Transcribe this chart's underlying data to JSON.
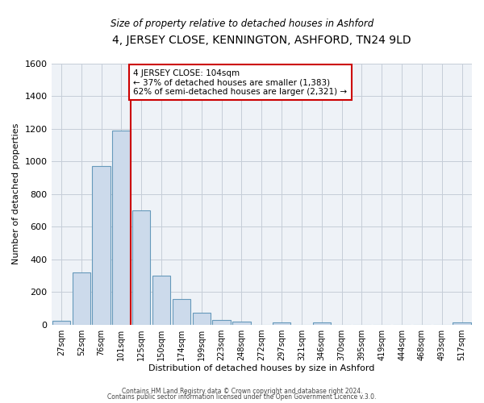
{
  "title": "4, JERSEY CLOSE, KENNINGTON, ASHFORD, TN24 9LD",
  "subtitle": "Size of property relative to detached houses in Ashford",
  "xlabel": "Distribution of detached houses by size in Ashford",
  "ylabel": "Number of detached properties",
  "bar_color": "#ccdaeb",
  "bar_edge_color": "#6699bb",
  "categories": [
    "27sqm",
    "52sqm",
    "76sqm",
    "101sqm",
    "125sqm",
    "150sqm",
    "174sqm",
    "199sqm",
    "223sqm",
    "248sqm",
    "272sqm",
    "297sqm",
    "321sqm",
    "346sqm",
    "370sqm",
    "395sqm",
    "419sqm",
    "444sqm",
    "468sqm",
    "493sqm",
    "517sqm"
  ],
  "values": [
    25,
    320,
    970,
    1190,
    700,
    300,
    155,
    70,
    28,
    20,
    0,
    15,
    0,
    12,
    0,
    0,
    0,
    0,
    0,
    0,
    15
  ],
  "ylim": [
    0,
    1600
  ],
  "yticks": [
    0,
    200,
    400,
    600,
    800,
    1000,
    1200,
    1400,
    1600
  ],
  "vline_index": 3,
  "vline_color": "#cc0000",
  "annotation_line1": "4 JERSEY CLOSE: 104sqm",
  "annotation_line2": "← 37% of detached houses are smaller (1,383)",
  "annotation_line3": "62% of semi-detached houses are larger (2,321) →",
  "annotation_box_color": "#ffffff",
  "annotation_box_edge": "#cc0000",
  "footer1": "Contains HM Land Registry data © Crown copyright and database right 2024.",
  "footer2": "Contains public sector information licensed under the Open Government Licence v.3.0.",
  "background_color": "#eef2f7",
  "grid_color": "#c5cdd8"
}
